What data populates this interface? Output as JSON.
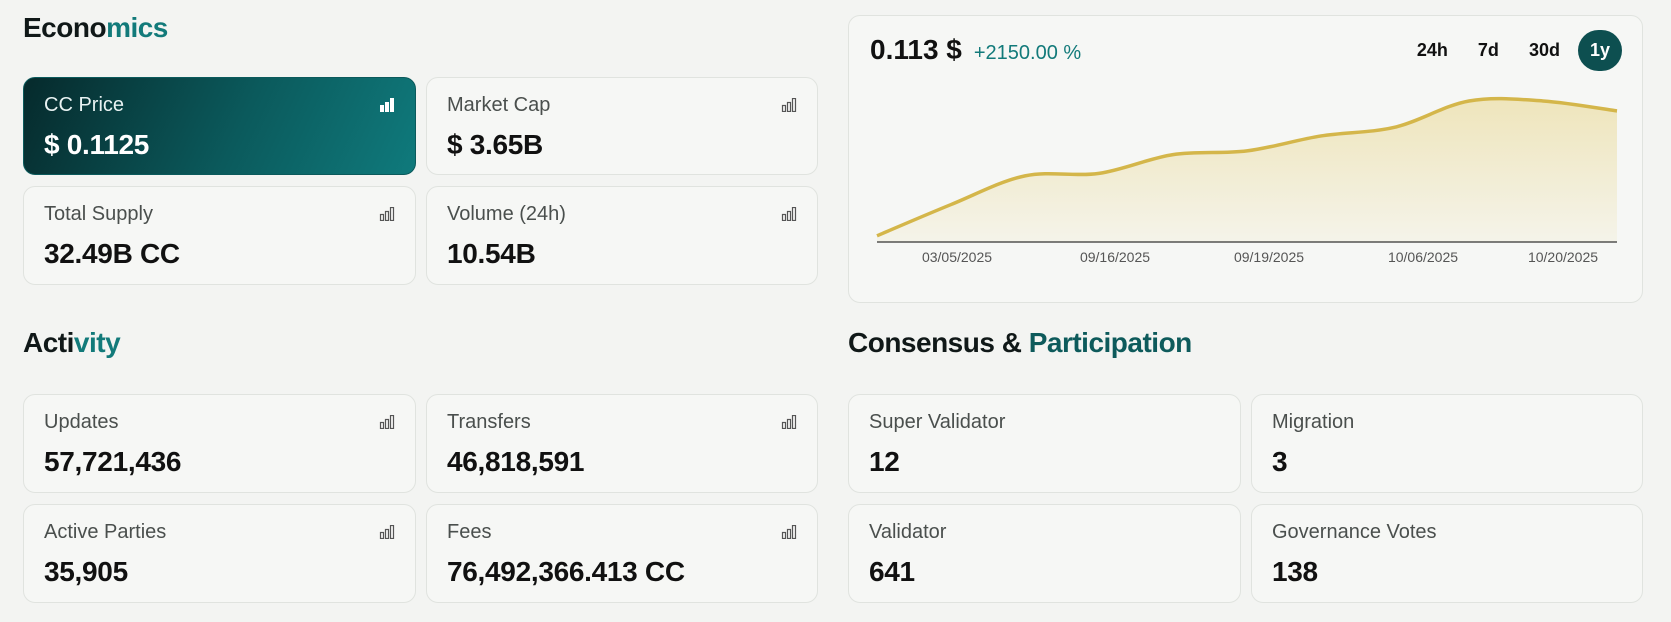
{
  "economics": {
    "title_part1": "Econo",
    "title_part2": "mics",
    "cards": [
      {
        "label": "CC Price",
        "value": "$ 0.1125"
      },
      {
        "label": "Market Cap",
        "value": "$ 3.65B"
      },
      {
        "label": "Total Supply",
        "value": "32.49B CC"
      },
      {
        "label": "Volume (24h)",
        "value": "10.54B"
      }
    ]
  },
  "price_chart": {
    "price": "0.113 $",
    "change": "+2150.00 %",
    "ranges": [
      "24h",
      "7d",
      "30d",
      "1y"
    ],
    "selected_range": "1y",
    "line_color": "#d4b64a",
    "fill_color": "#ecdfa8"
  },
  "chart_data": {
    "type": "area",
    "x_ticks": [
      "03/05/2025",
      "09/16/2025",
      "09/19/2025",
      "10/06/2025",
      "10/20/2025"
    ],
    "y": [
      0.005,
      0.03,
      0.053,
      0.055,
      0.07,
      0.073,
      0.085,
      0.092,
      0.113,
      0.113,
      0.105
    ],
    "ylim": [
      0,
      0.125
    ],
    "grid": false
  },
  "activity": {
    "title_part1": "Acti",
    "title_part2": "vity",
    "cards": [
      {
        "label": "Updates",
        "value": "57,721,436"
      },
      {
        "label": "Transfers",
        "value": "46,818,591"
      },
      {
        "label": "Active Parties",
        "value": "35,905"
      },
      {
        "label": "Fees",
        "value": "76,492,366.413 CC"
      }
    ]
  },
  "consensus": {
    "title_part1": "Consensus & ",
    "title_part2": "Participation",
    "cards": [
      {
        "label": "Super Validator",
        "value": "12"
      },
      {
        "label": "Migration",
        "value": "3"
      },
      {
        "label": "Validator",
        "value": "641"
      },
      {
        "label": "Governance Votes",
        "value": "138"
      }
    ]
  }
}
